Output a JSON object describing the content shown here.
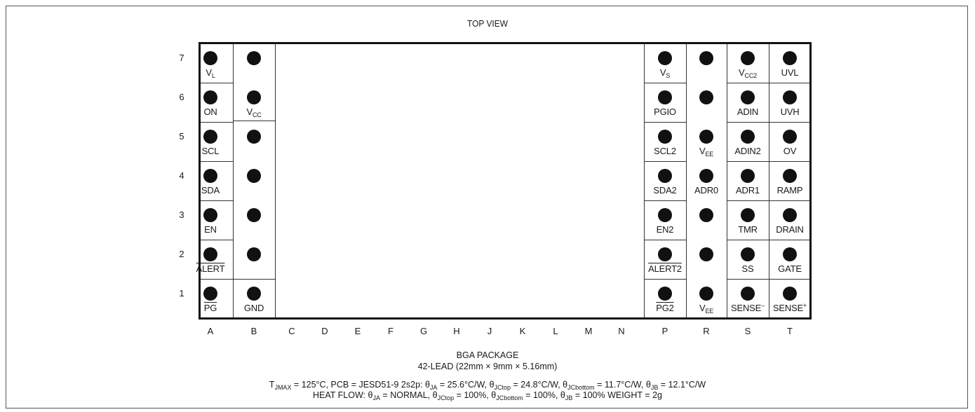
{
  "title": "TOP VIEW",
  "rows": [
    "7",
    "6",
    "5",
    "4",
    "3",
    "2",
    "1"
  ],
  "columns": [
    "A",
    "B",
    "C",
    "D",
    "E",
    "F",
    "G",
    "H",
    "J",
    "K",
    "L",
    "M",
    "N",
    "P",
    "R",
    "S",
    "T"
  ],
  "left_block": {
    "A": [
      {
        "base": "V",
        "sub": "L"
      },
      {
        "base": "ON"
      },
      {
        "base": "SCL"
      },
      {
        "base": "SDA"
      },
      {
        "base": "EN"
      },
      {
        "base": "ALERT",
        "overline": true
      },
      {
        "base": "PG",
        "overline": true
      }
    ],
    "B": [
      {
        "base": ""
      },
      {
        "base": "V",
        "sub": "CC"
      },
      {
        "base": ""
      },
      {
        "base": ""
      },
      {
        "base": ""
      },
      {
        "base": ""
      },
      {
        "base": "GND"
      }
    ]
  },
  "right_block": {
    "P": [
      {
        "base": "V",
        "sub": "S"
      },
      {
        "base": "PGIO"
      },
      {
        "base": "SCL2"
      },
      {
        "base": "SDA2"
      },
      {
        "base": "EN2"
      },
      {
        "base": "ALERT2",
        "overline": true
      },
      {
        "base": "PG2",
        "overline": true
      }
    ],
    "R": [
      {
        "base": ""
      },
      {
        "base": ""
      },
      {
        "base": "V",
        "sub": "EE"
      },
      {
        "base": "ADR0"
      },
      {
        "base": ""
      },
      {
        "base": ""
      },
      {
        "base": "V",
        "sub": "EE"
      }
    ],
    "S": [
      {
        "base": "V",
        "sub": "CC2"
      },
      {
        "base": "ADIN"
      },
      {
        "base": "ADIN2"
      },
      {
        "base": "ADR1"
      },
      {
        "base": "TMR"
      },
      {
        "base": "SS"
      },
      {
        "base": "SENSE",
        "sup": "–"
      }
    ],
    "T": [
      {
        "base": "UVL"
      },
      {
        "base": "UVH"
      },
      {
        "base": "OV"
      },
      {
        "base": "RAMP"
      },
      {
        "base": "DRAIN"
      },
      {
        "base": "GATE"
      },
      {
        "base": "SENSE",
        "sup": "+"
      }
    ]
  },
  "footer": {
    "package": "BGA PACKAGE",
    "leads": "42-LEAD (22mm × 9mm × 5.16mm)",
    "thermal_line1": [
      {
        "t": "T"
      },
      {
        "sub": "JMAX"
      },
      {
        "t": " = 125°C, PCB = JESD51-9 2s2p: θ"
      },
      {
        "sub": "JA"
      },
      {
        "t": " = 25.6°C/W, θ"
      },
      {
        "sub": "JCtop"
      },
      {
        "t": " = 24.8°C/W, θ"
      },
      {
        "sub": "JCbottom"
      },
      {
        "t": " = 11.7°C/W, θ"
      },
      {
        "sub": "JB"
      },
      {
        "t": " = 12.1°C/W"
      }
    ],
    "thermal_line2": [
      {
        "t": "HEAT FLOW: θ"
      },
      {
        "sub": "JA"
      },
      {
        "t": " = NORMAL, θ"
      },
      {
        "sub": "JCtop"
      },
      {
        "t": " = 100%, θ"
      },
      {
        "sub": "JCbottom"
      },
      {
        "t": " = 100%, θ"
      },
      {
        "sub": "JB"
      },
      {
        "t": " = 100% WEIGHT = 2g"
      }
    ]
  }
}
